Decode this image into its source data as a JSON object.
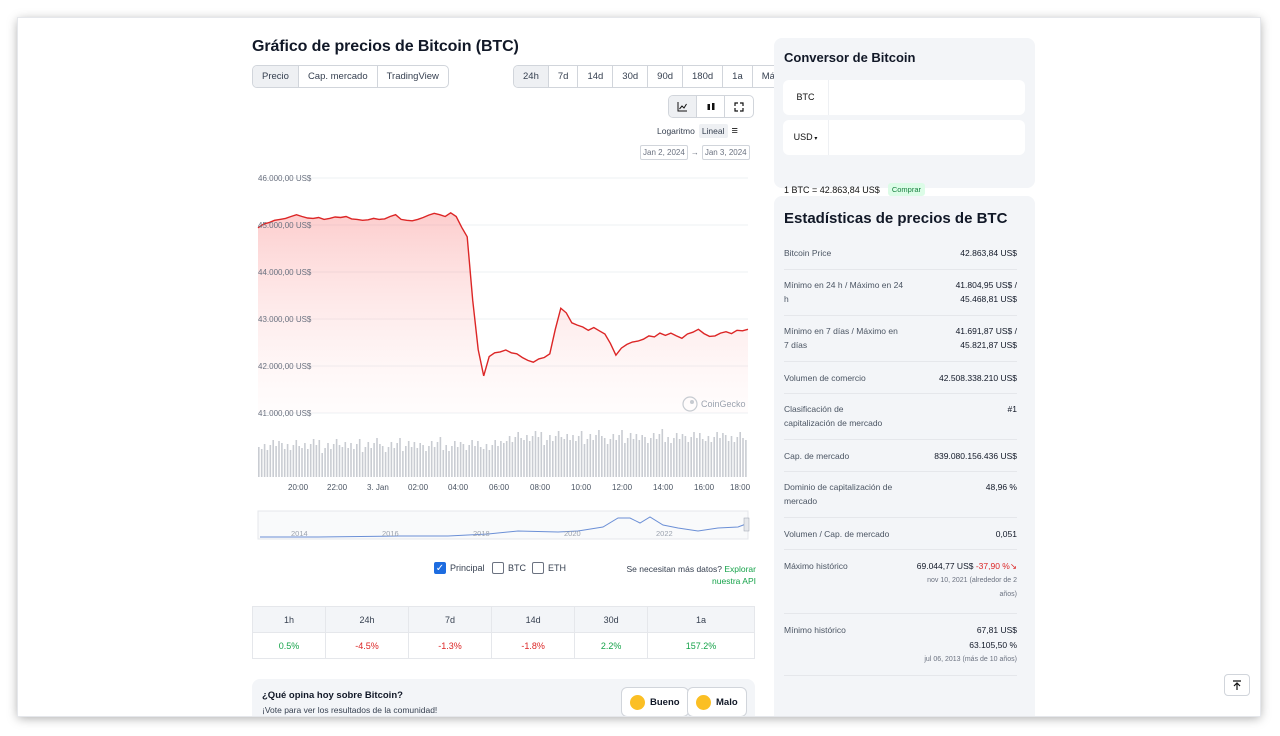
{
  "chart_section": {
    "title": "Gráfico de precios de Bitcoin (BTC)",
    "view_tabs": [
      "Precio",
      "Cap. mercado",
      "TradingView"
    ],
    "range_tabs": [
      "24h",
      "7d",
      "14d",
      "30d",
      "90d",
      "180d",
      "1a",
      "Máx"
    ],
    "icon_buttons": [
      "line-chart-icon",
      "candlestick-icon",
      "fullscreen-icon"
    ],
    "scale": {
      "log": "Logaritmo",
      "linear": "Lineal"
    },
    "date_from": "Jan 2, 2024",
    "date_arrow": "→",
    "date_to": "Jan 3, 2024",
    "watermark": "CoinGecko",
    "compare": {
      "principal": "Principal",
      "btc": "BTC",
      "eth": "ETH"
    },
    "api_text": "Se necesitan más datos?",
    "api_link": "Explorar nuestra API"
  },
  "chart_data": {
    "type": "area",
    "y_tick_labels": [
      "46.000,00 US$",
      "45.000,00 US$",
      "44.000,00 US$",
      "43.000,00 US$",
      "42.000,00 US$",
      "41.000,00 US$"
    ],
    "ylim": [
      41000,
      46000
    ],
    "x_tick_labels": [
      "20:00",
      "22:00",
      "3. Jan",
      "02:00",
      "04:00",
      "06:00",
      "08:00",
      "10:00",
      "12:00",
      "14:00",
      "16:00",
      "18:00"
    ],
    "navigator_labels": [
      "2014",
      "2016",
      "2018",
      "2020",
      "2022"
    ],
    "color": "#dc2626",
    "series": [
      {
        "values": [
          44940,
          45020,
          45050,
          45100,
          45120,
          45140,
          45180,
          45220,
          45180,
          45150,
          45140,
          45160,
          45120,
          45140,
          45170,
          45160,
          45180,
          45130,
          45120,
          45100,
          45110,
          45140,
          45120,
          45130,
          45180,
          45220,
          45120,
          45100,
          45090,
          45120,
          45160,
          45210,
          45250,
          45220,
          45180,
          45260,
          45180,
          44950,
          44750,
          43400,
          42350,
          41790,
          42200,
          42280,
          42300,
          42340,
          42280,
          42260,
          42180,
          42120,
          42080,
          42150,
          42180,
          42260,
          42780,
          43230,
          43130,
          42920,
          42870,
          42830,
          42760,
          42820,
          42750,
          42680,
          42480,
          42230,
          42380,
          42460,
          42510,
          42530,
          42570,
          42640,
          42620,
          42700,
          42650,
          42700,
          42640,
          42590,
          42680,
          42720,
          42780,
          42690,
          42630,
          42640,
          42700,
          42730,
          42690,
          42760,
          42750,
          42780
        ]
      }
    ]
  },
  "performance": {
    "headers": [
      "1h",
      "24h",
      "7d",
      "14d",
      "30d",
      "1a"
    ],
    "values": [
      "0.5%",
      "-4.5%",
      "-1.3%",
      "-1.8%",
      "2.2%",
      "157.2%"
    ]
  },
  "opinion": {
    "question": "¿Qué opina hoy sobre Bitcoin?",
    "subtitle": "¡Vote para ver los resultados de la comunidad!",
    "good": "Bueno",
    "bad": "Malo"
  },
  "converter": {
    "title": "Conversor de Bitcoin",
    "from_currency": "BTC",
    "to_currency": "USD",
    "rate": "1 BTC = 42.863,84 US$",
    "buy": "Comprar"
  },
  "stats": {
    "title": "Estadísticas de precios de BTC",
    "rows": [
      {
        "label": "Bitcoin Price",
        "value": "42.863,84 US$"
      },
      {
        "label": "Mínimo en 24 h / Máximo en 24 h",
        "value": "41.804,95 US$ / 45.468,81 US$"
      },
      {
        "label": "Mínimo en 7 días / Máximo en 7 días",
        "value": "41.691,87 US$ / 45.821,87 US$"
      },
      {
        "label": "Volumen de comercio",
        "value": "42.508.338.210 US$"
      },
      {
        "label": "Clasificación de capitalización de mercado",
        "value": "#1"
      },
      {
        "label": "Cap. de mercado",
        "value": "839.080.156.436 US$"
      },
      {
        "label": "Dominio de capitalización de mercado",
        "value": "48,96 %"
      },
      {
        "label": "Volumen / Cap. de mercado",
        "value": "0,051"
      },
      {
        "label": "Máximo histórico",
        "value": "69.044,77 US$",
        "change": "-37,90 %",
        "date": "nov 10, 2021 (alrededor de 2 años)"
      },
      {
        "label": "Mínimo histórico",
        "value": "67,81 US$",
        "change": "63.105,50 %",
        "date": "jul 06, 2013 (más de 10 años)"
      }
    ]
  },
  "colors": {
    "accent_green": "#16a34a",
    "accent_red": "#dc2626",
    "panel_bg": "#f3f5f8"
  }
}
